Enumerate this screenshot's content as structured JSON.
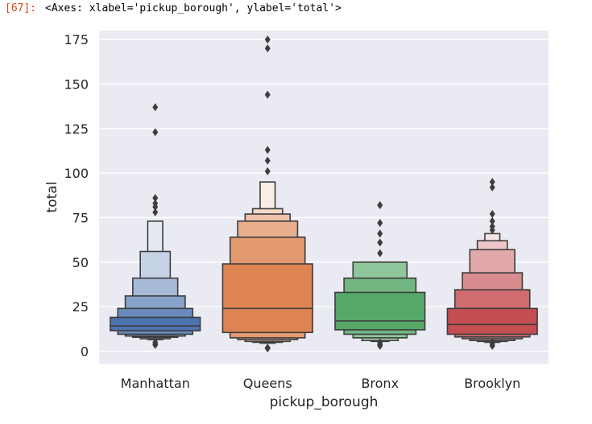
{
  "cell": {
    "prompt": "[67]:",
    "output_repr": "<Axes: xlabel='pickup_borough', ylabel='total'>"
  },
  "chart_data": {
    "type": "boxen",
    "title": "",
    "xlabel": "pickup_borough",
    "ylabel": "total",
    "ylim": [
      -7,
      180
    ],
    "yticks": [
      0,
      25,
      50,
      75,
      100,
      125,
      150,
      175
    ],
    "grid": true,
    "background": "#eaeaf2",
    "categories": [
      "Manhattan",
      "Queens",
      "Bronx",
      "Brooklyn"
    ],
    "series": [
      {
        "category": "Manhattan",
        "color": "#4c72b0",
        "median": 14.2,
        "boxes": [
          {
            "low": 11.5,
            "high": 19.0
          },
          {
            "low": 9.5,
            "high": 24.0
          },
          {
            "low": 8.5,
            "high": 31.0
          },
          {
            "low": 7.8,
            "high": 41.0
          },
          {
            "low": 7.0,
            "high": 56.0
          },
          {
            "low": 6.5,
            "high": 73.0
          }
        ],
        "outliers": [
          137,
          123,
          86,
          83,
          81,
          78,
          5,
          4,
          3.5
        ]
      },
      {
        "category": "Queens",
        "color": "#dd8452",
        "median": 24.0,
        "boxes": [
          {
            "low": 10.5,
            "high": 49.0
          },
          {
            "low": 7.5,
            "high": 64.0
          },
          {
            "low": 6.5,
            "high": 73.0
          },
          {
            "low": 5.5,
            "high": 77.0
          },
          {
            "low": 5.0,
            "high": 80.0
          },
          {
            "low": 4.5,
            "high": 95.0
          }
        ],
        "outliers": [
          175,
          170,
          144,
          113,
          107,
          101,
          2,
          1.5
        ]
      },
      {
        "category": "Bronx",
        "color": "#55a868",
        "median": 17.0,
        "boxes": [
          {
            "low": 12.0,
            "high": 33.0
          },
          {
            "low": 9.5,
            "high": 41.0
          },
          {
            "low": 7.5,
            "high": 50.0
          },
          {
            "low": 6.0,
            "high": 50.0
          },
          {
            "low": 5.5,
            "high": 50.0
          }
        ],
        "outliers": [
          82,
          72,
          66,
          61,
          55,
          5,
          4,
          3.5,
          3
        ]
      },
      {
        "category": "Brooklyn",
        "color": "#c44e52",
        "median": 15.0,
        "boxes": [
          {
            "low": 9.5,
            "high": 24.0
          },
          {
            "low": 8.0,
            "high": 34.5
          },
          {
            "low": 7.0,
            "high": 44.0
          },
          {
            "low": 6.0,
            "high": 57.0
          },
          {
            "low": 5.5,
            "high": 62.0
          },
          {
            "low": 5.0,
            "high": 66.0
          }
        ],
        "outliers": [
          95,
          92,
          77,
          73,
          70,
          68,
          5,
          4,
          3
        ]
      }
    ]
  }
}
